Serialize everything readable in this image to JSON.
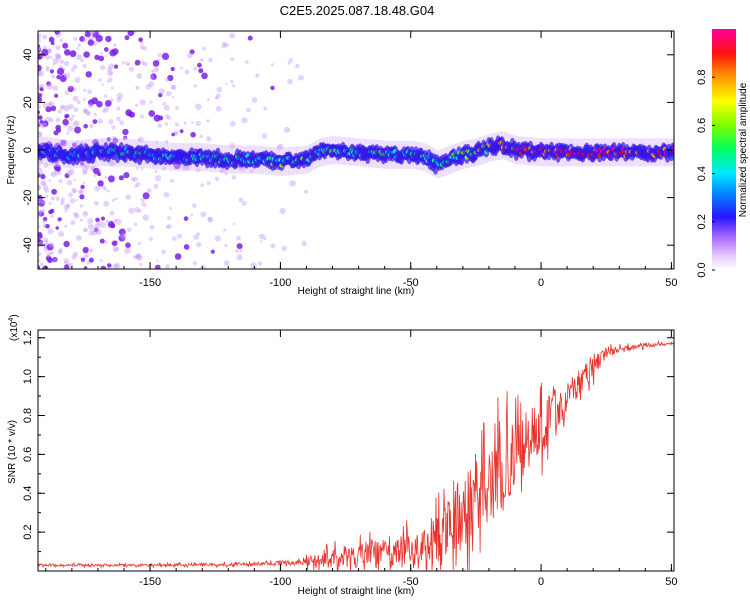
{
  "title": "C2E5.2025.087.18.48.G04",
  "colors": {
    "snr_line": "#e8322b",
    "spectrogram_low": "#b070ff",
    "spectrogram_mid": "#3a20ff",
    "ridge_cyan": "#00e5ff",
    "ridge_green": "#29ff2e",
    "ridge_red": "#ff0d1a",
    "axis": "#000000"
  },
  "chart_data": [
    {
      "type": "heatmap",
      "xlabel": "Height of straight line (km)",
      "ylabel": "Frequency (Hz)",
      "xlim": [
        -193,
        51
      ],
      "ylim": [
        -50,
        50
      ],
      "x_ticks": [
        -150,
        -100,
        -50,
        0,
        50
      ],
      "y_ticks": [
        -40,
        -20,
        0,
        20,
        40
      ],
      "colorbar": {
        "label": "Normalized spectral amplitude",
        "range": [
          0,
          1
        ],
        "ticks": [
          "0.0",
          "0.2",
          "0.4",
          "0.6",
          "0.8"
        ]
      },
      "ridge": {
        "x": [
          -193,
          -180,
          -170,
          -160,
          -150,
          -140,
          -130,
          -120,
          -110,
          -100,
          -90,
          -85,
          -80,
          -70,
          -60,
          -50,
          -45,
          -40,
          -35,
          -30,
          -25,
          -20,
          -15,
          -10,
          0,
          10,
          20,
          30,
          40,
          51
        ],
        "y": [
          0,
          -2,
          -1,
          -1,
          -2,
          -3,
          -3,
          -4,
          -4,
          -5,
          -4,
          -1,
          0,
          -1,
          -2,
          -2,
          -3,
          -6,
          -4,
          -2,
          -1,
          1,
          2,
          0,
          -1,
          -1,
          -1,
          -1,
          -1,
          -1
        ],
        "amplitude": [
          0.2,
          0.35,
          0.4,
          0.45,
          0.4,
          0.4,
          0.45,
          0.45,
          0.5,
          0.5,
          0.5,
          0.55,
          0.55,
          0.5,
          0.5,
          0.45,
          0.5,
          0.45,
          0.5,
          0.55,
          0.6,
          0.65,
          0.8,
          0.95,
          0.95,
          0.95,
          0.95,
          0.95,
          0.95,
          0.95
        ]
      },
      "noise_extent_x": [
        -193,
        -95
      ]
    },
    {
      "type": "line",
      "xlabel": "Height of straight line (km)",
      "ylabel": "SNR (10 * v/v)",
      "y_multiplier": "(x10",
      "y_multiplier_exponent": "4",
      "xlim": [
        -193,
        51
      ],
      "ylim": [
        0,
        1.24
      ],
      "x_ticks": [
        -150,
        -100,
        -50,
        0,
        50
      ],
      "y_ticks": [
        0.2,
        0.4,
        0.6,
        0.8,
        1.0,
        1.2
      ],
      "series": [
        {
          "envelope_x": [
            -193,
            -150,
            -110,
            -100,
            -90,
            -80,
            -70,
            -60,
            -50,
            -45,
            -40,
            -35,
            -30,
            -25,
            -20,
            -15,
            -10,
            -5,
            0,
            5,
            10,
            15,
            20,
            25,
            30,
            40,
            51
          ],
          "envelope_base": [
            0.03,
            0.03,
            0.035,
            0.04,
            0.05,
            0.06,
            0.08,
            0.09,
            0.1,
            0.12,
            0.15,
            0.2,
            0.3,
            0.38,
            0.4,
            0.52,
            0.6,
            0.68,
            0.75,
            0.82,
            0.9,
            0.98,
            1.05,
            1.12,
            1.14,
            1.16,
            1.17
          ],
          "envelope_spread": [
            0.01,
            0.012,
            0.015,
            0.02,
            0.05,
            0.09,
            0.13,
            0.15,
            0.18,
            0.2,
            0.25,
            0.33,
            0.4,
            0.42,
            0.45,
            0.4,
            0.35,
            0.3,
            0.28,
            0.22,
            0.18,
            0.14,
            0.1,
            0.05,
            0.03,
            0.02,
            0.015
          ]
        }
      ]
    }
  ]
}
